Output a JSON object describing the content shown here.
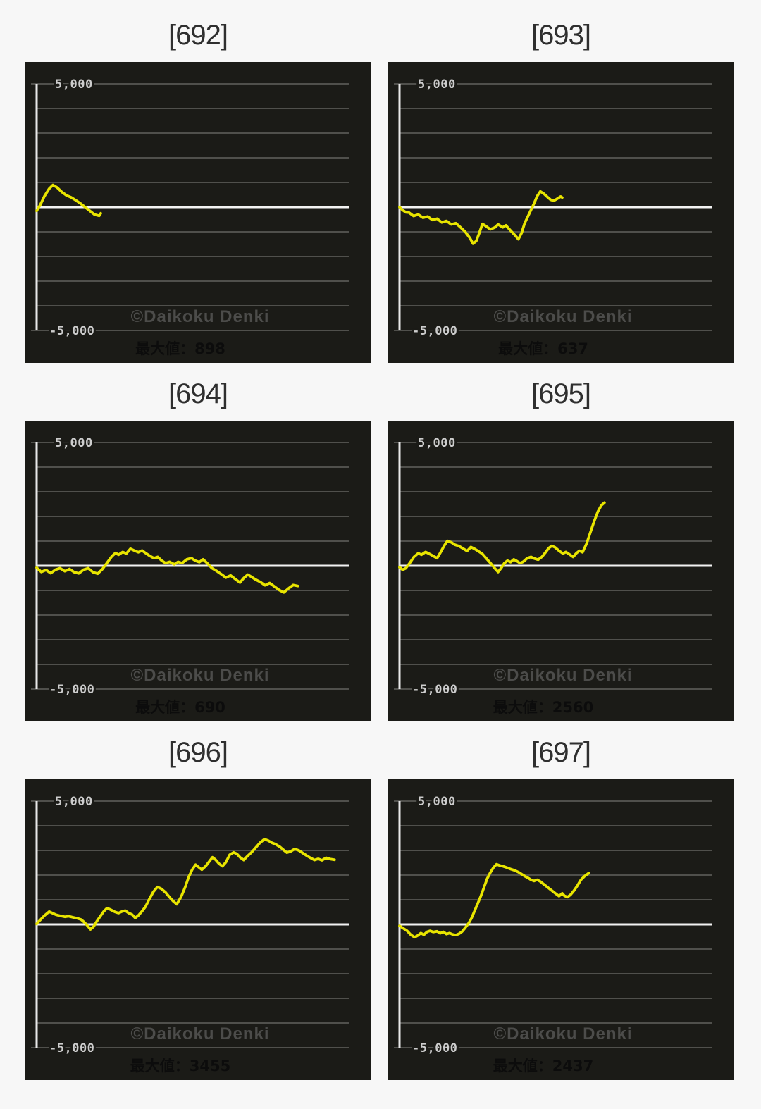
{
  "page_background": "#f7f7f7",
  "watermark_text": "©Daikoku Denki",
  "y_axis": {
    "top_label": "5,000",
    "bottom_label": "-5,000",
    "max": 5000,
    "min": -5000,
    "gridline_step": 1000
  },
  "colors": {
    "line": "#e8e400",
    "panel_bg": "#1b1b17",
    "grid": "#62625f",
    "zero_line": "#f2f2f2",
    "axis": "#e9e9e9",
    "tick_label": "#cdcdcd",
    "watermark": "#4c4c4a",
    "max_text": "#0c0c0c",
    "title": "#2f2f2f"
  },
  "chart_data": [
    {
      "type": "line",
      "title": "[692]",
      "max_value": 898,
      "max_label": "最大値：898",
      "ylim": [
        -5000,
        5000
      ],
      "grid": true,
      "legend": false,
      "points": [
        [
          0,
          -150
        ],
        [
          0.012,
          100
        ],
        [
          0.025,
          450
        ],
        [
          0.04,
          750
        ],
        [
          0.052,
          898
        ],
        [
          0.065,
          800
        ],
        [
          0.08,
          620
        ],
        [
          0.095,
          480
        ],
        [
          0.11,
          400
        ],
        [
          0.125,
          280
        ],
        [
          0.14,
          150
        ],
        [
          0.155,
          0
        ],
        [
          0.17,
          -150
        ],
        [
          0.185,
          -300
        ],
        [
          0.2,
          -350
        ],
        [
          0.205,
          -250
        ]
      ]
    },
    {
      "type": "line",
      "title": "[693]",
      "max_value": 637,
      "max_label": "最大値：637",
      "ylim": [
        -5000,
        5000
      ],
      "grid": true,
      "legend": false,
      "points": [
        [
          0,
          0
        ],
        [
          0.01,
          -120
        ],
        [
          0.03,
          -220
        ],
        [
          0.045,
          -360
        ],
        [
          0.06,
          -300
        ],
        [
          0.075,
          -430
        ],
        [
          0.09,
          -380
        ],
        [
          0.105,
          -520
        ],
        [
          0.12,
          -470
        ],
        [
          0.135,
          -620
        ],
        [
          0.15,
          -560
        ],
        [
          0.165,
          -700
        ],
        [
          0.18,
          -650
        ],
        [
          0.195,
          -820
        ],
        [
          0.21,
          -1000
        ],
        [
          0.225,
          -1250
        ],
        [
          0.235,
          -1480
        ],
        [
          0.245,
          -1380
        ],
        [
          0.255,
          -1050
        ],
        [
          0.265,
          -680
        ],
        [
          0.275,
          -760
        ],
        [
          0.29,
          -900
        ],
        [
          0.305,
          -820
        ],
        [
          0.315,
          -700
        ],
        [
          0.33,
          -820
        ],
        [
          0.34,
          -740
        ],
        [
          0.355,
          -950
        ],
        [
          0.37,
          -1150
        ],
        [
          0.38,
          -1300
        ],
        [
          0.39,
          -1050
        ],
        [
          0.4,
          -650
        ],
        [
          0.415,
          -250
        ],
        [
          0.43,
          150
        ],
        [
          0.44,
          450
        ],
        [
          0.45,
          637
        ],
        [
          0.462,
          540
        ],
        [
          0.472,
          420
        ],
        [
          0.483,
          300
        ],
        [
          0.493,
          260
        ],
        [
          0.503,
          330
        ],
        [
          0.515,
          430
        ],
        [
          0.52,
          390
        ]
      ]
    },
    {
      "type": "line",
      "title": "[694]",
      "max_value": 690,
      "max_label": "最大値：690",
      "ylim": [
        -5000,
        5000
      ],
      "grid": true,
      "legend": false,
      "points": [
        [
          0,
          -80
        ],
        [
          0.015,
          -250
        ],
        [
          0.03,
          -170
        ],
        [
          0.045,
          -300
        ],
        [
          0.06,
          -160
        ],
        [
          0.075,
          -100
        ],
        [
          0.09,
          -220
        ],
        [
          0.105,
          -130
        ],
        [
          0.12,
          -260
        ],
        [
          0.135,
          -310
        ],
        [
          0.15,
          -160
        ],
        [
          0.165,
          -100
        ],
        [
          0.18,
          -260
        ],
        [
          0.195,
          -320
        ],
        [
          0.21,
          -140
        ],
        [
          0.225,
          120
        ],
        [
          0.24,
          380
        ],
        [
          0.252,
          520
        ],
        [
          0.262,
          450
        ],
        [
          0.275,
          560
        ],
        [
          0.287,
          500
        ],
        [
          0.3,
          690
        ],
        [
          0.312,
          620
        ],
        [
          0.325,
          550
        ],
        [
          0.337,
          620
        ],
        [
          0.35,
          500
        ],
        [
          0.362,
          400
        ],
        [
          0.375,
          310
        ],
        [
          0.387,
          360
        ],
        [
          0.4,
          210
        ],
        [
          0.412,
          110
        ],
        [
          0.425,
          160
        ],
        [
          0.44,
          60
        ],
        [
          0.452,
          160
        ],
        [
          0.465,
          110
        ],
        [
          0.48,
          260
        ],
        [
          0.495,
          310
        ],
        [
          0.507,
          210
        ],
        [
          0.52,
          150
        ],
        [
          0.532,
          260
        ],
        [
          0.545,
          110
        ],
        [
          0.56,
          -90
        ],
        [
          0.575,
          -210
        ],
        [
          0.59,
          -340
        ],
        [
          0.605,
          -480
        ],
        [
          0.62,
          -390
        ],
        [
          0.635,
          -540
        ],
        [
          0.65,
          -680
        ],
        [
          0.662,
          -500
        ],
        [
          0.675,
          -360
        ],
        [
          0.687,
          -450
        ],
        [
          0.7,
          -560
        ],
        [
          0.715,
          -660
        ],
        [
          0.73,
          -790
        ],
        [
          0.745,
          -700
        ],
        [
          0.76,
          -840
        ],
        [
          0.775,
          -980
        ],
        [
          0.79,
          -1080
        ],
        [
          0.805,
          -920
        ],
        [
          0.82,
          -780
        ],
        [
          0.835,
          -820
        ]
      ]
    },
    {
      "type": "line",
      "title": "[695]",
      "max_value": 2560,
      "max_label": "最大値：2560",
      "ylim": [
        -5000,
        5000
      ],
      "grid": true,
      "legend": false,
      "points": [
        [
          0,
          -60
        ],
        [
          0.01,
          -160
        ],
        [
          0.02,
          -100
        ],
        [
          0.033,
          120
        ],
        [
          0.046,
          360
        ],
        [
          0.06,
          510
        ],
        [
          0.07,
          450
        ],
        [
          0.083,
          560
        ],
        [
          0.093,
          500
        ],
        [
          0.106,
          410
        ],
        [
          0.12,
          310
        ],
        [
          0.13,
          520
        ],
        [
          0.143,
          820
        ],
        [
          0.153,
          1010
        ],
        [
          0.166,
          950
        ],
        [
          0.176,
          860
        ],
        [
          0.19,
          800
        ],
        [
          0.203,
          700
        ],
        [
          0.216,
          600
        ],
        [
          0.228,
          760
        ],
        [
          0.238,
          700
        ],
        [
          0.252,
          590
        ],
        [
          0.265,
          480
        ],
        [
          0.278,
          290
        ],
        [
          0.292,
          90
        ],
        [
          0.305,
          -110
        ],
        [
          0.315,
          -250
        ],
        [
          0.325,
          -90
        ],
        [
          0.335,
          110
        ],
        [
          0.345,
          210
        ],
        [
          0.355,
          150
        ],
        [
          0.365,
          260
        ],
        [
          0.375,
          190
        ],
        [
          0.385,
          110
        ],
        [
          0.395,
          160
        ],
        [
          0.408,
          310
        ],
        [
          0.42,
          360
        ],
        [
          0.43,
          300
        ],
        [
          0.443,
          250
        ],
        [
          0.455,
          360
        ],
        [
          0.465,
          520
        ],
        [
          0.477,
          720
        ],
        [
          0.487,
          810
        ],
        [
          0.497,
          750
        ],
        [
          0.51,
          610
        ],
        [
          0.522,
          500
        ],
        [
          0.532,
          560
        ],
        [
          0.545,
          450
        ],
        [
          0.555,
          360
        ],
        [
          0.565,
          510
        ],
        [
          0.575,
          610
        ],
        [
          0.585,
          550
        ],
        [
          0.598,
          900
        ],
        [
          0.61,
          1350
        ],
        [
          0.622,
          1800
        ],
        [
          0.634,
          2200
        ],
        [
          0.645,
          2450
        ],
        [
          0.655,
          2560
        ]
      ]
    },
    {
      "type": "line",
      "title": "[696]",
      "max_value": 3455,
      "max_label": "最大値：3455",
      "ylim": [
        -5000,
        5000
      ],
      "grid": true,
      "legend": false,
      "points": [
        [
          0,
          20
        ],
        [
          0.01,
          160
        ],
        [
          0.025,
          360
        ],
        [
          0.04,
          520
        ],
        [
          0.05,
          460
        ],
        [
          0.062,
          390
        ],
        [
          0.075,
          350
        ],
        [
          0.09,
          310
        ],
        [
          0.102,
          330
        ],
        [
          0.115,
          290
        ],
        [
          0.13,
          250
        ],
        [
          0.142,
          200
        ],
        [
          0.152,
          90
        ],
        [
          0.163,
          -60
        ],
        [
          0.172,
          -200
        ],
        [
          0.182,
          -90
        ],
        [
          0.192,
          120
        ],
        [
          0.203,
          320
        ],
        [
          0.214,
          520
        ],
        [
          0.225,
          660
        ],
        [
          0.236,
          600
        ],
        [
          0.25,
          510
        ],
        [
          0.262,
          460
        ],
        [
          0.272,
          520
        ],
        [
          0.283,
          560
        ],
        [
          0.294,
          460
        ],
        [
          0.305,
          400
        ],
        [
          0.315,
          260
        ],
        [
          0.325,
          360
        ],
        [
          0.336,
          520
        ],
        [
          0.348,
          720
        ],
        [
          0.36,
          1020
        ],
        [
          0.373,
          1320
        ],
        [
          0.386,
          1520
        ],
        [
          0.398,
          1450
        ],
        [
          0.412,
          1300
        ],
        [
          0.425,
          1100
        ],
        [
          0.436,
          950
        ],
        [
          0.448,
          820
        ],
        [
          0.462,
          1120
        ],
        [
          0.475,
          1520
        ],
        [
          0.486,
          1920
        ],
        [
          0.497,
          2220
        ],
        [
          0.508,
          2420
        ],
        [
          0.518,
          2320
        ],
        [
          0.528,
          2220
        ],
        [
          0.54,
          2360
        ],
        [
          0.55,
          2520
        ],
        [
          0.562,
          2720
        ],
        [
          0.572,
          2620
        ],
        [
          0.583,
          2460
        ],
        [
          0.594,
          2360
        ],
        [
          0.605,
          2520
        ],
        [
          0.617,
          2820
        ],
        [
          0.63,
          2920
        ],
        [
          0.64,
          2860
        ],
        [
          0.651,
          2710
        ],
        [
          0.662,
          2610
        ],
        [
          0.673,
          2760
        ],
        [
          0.686,
          2910
        ],
        [
          0.7,
          3110
        ],
        [
          0.714,
          3310
        ],
        [
          0.728,
          3455
        ],
        [
          0.74,
          3400
        ],
        [
          0.752,
          3310
        ],
        [
          0.764,
          3250
        ],
        [
          0.777,
          3150
        ],
        [
          0.79,
          3010
        ],
        [
          0.8,
          2910
        ],
        [
          0.812,
          2960
        ],
        [
          0.825,
          3060
        ],
        [
          0.838,
          3000
        ],
        [
          0.85,
          2900
        ],
        [
          0.862,
          2800
        ],
        [
          0.875,
          2700
        ],
        [
          0.888,
          2610
        ],
        [
          0.9,
          2660
        ],
        [
          0.912,
          2600
        ],
        [
          0.925,
          2700
        ],
        [
          0.938,
          2650
        ],
        [
          0.952,
          2620
        ]
      ]
    },
    {
      "type": "line",
      "title": "[697]",
      "max_value": 2437,
      "max_label": "最大値：2437",
      "ylim": [
        -5000,
        5000
      ],
      "grid": true,
      "legend": false,
      "points": [
        [
          0,
          -60
        ],
        [
          0.012,
          -160
        ],
        [
          0.024,
          -260
        ],
        [
          0.036,
          -420
        ],
        [
          0.048,
          -520
        ],
        [
          0.058,
          -450
        ],
        [
          0.068,
          -350
        ],
        [
          0.078,
          -420
        ],
        [
          0.088,
          -300
        ],
        [
          0.098,
          -260
        ],
        [
          0.108,
          -310
        ],
        [
          0.12,
          -280
        ],
        [
          0.13,
          -360
        ],
        [
          0.14,
          -300
        ],
        [
          0.15,
          -390
        ],
        [
          0.16,
          -350
        ],
        [
          0.17,
          -410
        ],
        [
          0.18,
          -430
        ],
        [
          0.19,
          -380
        ],
        [
          0.2,
          -290
        ],
        [
          0.21,
          -140
        ],
        [
          0.22,
          30
        ],
        [
          0.23,
          250
        ],
        [
          0.24,
          550
        ],
        [
          0.25,
          850
        ],
        [
          0.26,
          1150
        ],
        [
          0.27,
          1500
        ],
        [
          0.28,
          1850
        ],
        [
          0.29,
          2100
        ],
        [
          0.3,
          2300
        ],
        [
          0.31,
          2437
        ],
        [
          0.32,
          2390
        ],
        [
          0.332,
          2350
        ],
        [
          0.344,
          2300
        ],
        [
          0.356,
          2240
        ],
        [
          0.368,
          2190
        ],
        [
          0.38,
          2120
        ],
        [
          0.39,
          2040
        ],
        [
          0.4,
          1960
        ],
        [
          0.41,
          1890
        ],
        [
          0.42,
          1810
        ],
        [
          0.43,
          1760
        ],
        [
          0.44,
          1810
        ],
        [
          0.45,
          1740
        ],
        [
          0.46,
          1640
        ],
        [
          0.47,
          1540
        ],
        [
          0.48,
          1440
        ],
        [
          0.49,
          1340
        ],
        [
          0.5,
          1240
        ],
        [
          0.51,
          1150
        ],
        [
          0.52,
          1260
        ],
        [
          0.527,
          1160
        ],
        [
          0.537,
          1110
        ],
        [
          0.547,
          1210
        ],
        [
          0.557,
          1360
        ],
        [
          0.568,
          1560
        ],
        [
          0.58,
          1810
        ],
        [
          0.592,
          1960
        ],
        [
          0.605,
          2080
        ]
      ]
    }
  ]
}
